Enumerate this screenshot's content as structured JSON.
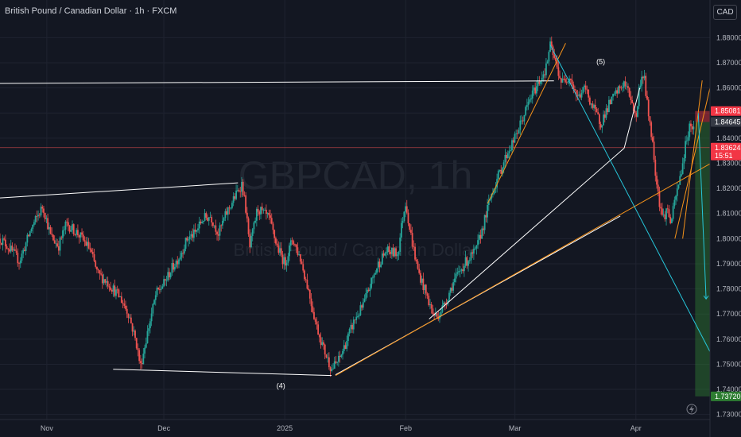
{
  "header": {
    "title": "British Pound / Canadian Dollar · 1h · FXCM",
    "currency": "CAD"
  },
  "watermark": {
    "symbol": "GBPCAD, 1h",
    "name": "British Pound / Canadian Dollar"
  },
  "colors": {
    "background": "#131722",
    "up": "#26a69a",
    "down": "#ef5350",
    "white_line": "#ffffff",
    "orange_line": "#f7931a",
    "teal_line": "#26c6da",
    "stop_zone": "#f23645",
    "target_zone": "#2e7d32"
  },
  "chart_data": {
    "type": "candlestick",
    "symbol": "GBPCAD",
    "interval": "1h",
    "source": "FXCM",
    "ylim": [
      1.728,
      1.895
    ],
    "y_ticks": [
      "1.88000",
      "1.87000",
      "1.86000",
      "1.85000",
      "1.84000",
      "1.83000",
      "1.82000",
      "1.81000",
      "1.80000",
      "1.79000",
      "1.78000",
      "1.77000",
      "1.76000",
      "1.75000",
      "1.74000",
      "1.73000"
    ],
    "x_ticks": [
      {
        "label": "Nov",
        "t": 10
      },
      {
        "label": "Dec",
        "t": 40
      },
      {
        "label": "2025",
        "t": 71
      },
      {
        "label": "Feb",
        "t": 102
      },
      {
        "label": "Mar",
        "t": 130
      },
      {
        "label": "Apr",
        "t": 161
      }
    ],
    "t_range": [
      -2,
      180
    ],
    "price_path": [
      [
        -2,
        1.8
      ],
      [
        0,
        1.797
      ],
      [
        3,
        1.791
      ],
      [
        6,
        1.804
      ],
      [
        9,
        1.813
      ],
      [
        11,
        1.801
      ],
      [
        13,
        1.797
      ],
      [
        15,
        1.806
      ],
      [
        18,
        1.802
      ],
      [
        21,
        1.796
      ],
      [
        23,
        1.786
      ],
      [
        26,
        1.782
      ],
      [
        29,
        1.776
      ],
      [
        31,
        1.77
      ],
      [
        33,
        1.758
      ],
      [
        34,
        1.749
      ],
      [
        36,
        1.764
      ],
      [
        38,
        1.778
      ],
      [
        40,
        1.782
      ],
      [
        42,
        1.788
      ],
      [
        44,
        1.793
      ],
      [
        46,
        1.8
      ],
      [
        48,
        1.802
      ],
      [
        50,
        1.808
      ],
      [
        52,
        1.809
      ],
      [
        54,
        1.802
      ],
      [
        56,
        1.81
      ],
      [
        58,
        1.816
      ],
      [
        60,
        1.822
      ],
      [
        61,
        1.812
      ],
      [
        62,
        1.796
      ],
      [
        64,
        1.812
      ],
      [
        67,
        1.808
      ],
      [
        69,
        1.797
      ],
      [
        71,
        1.79
      ],
      [
        73,
        1.8
      ],
      [
        75,
        1.792
      ],
      [
        77,
        1.78
      ],
      [
        79,
        1.766
      ],
      [
        81,
        1.756
      ],
      [
        83,
        1.748
      ],
      [
        85,
        1.752
      ],
      [
        87,
        1.76
      ],
      [
        89,
        1.768
      ],
      [
        91,
        1.773
      ],
      [
        93,
        1.782
      ],
      [
        95,
        1.79
      ],
      [
        97,
        1.795
      ],
      [
        100,
        1.794
      ],
      [
        101,
        1.806
      ],
      [
        102,
        1.815
      ],
      [
        103,
        1.804
      ],
      [
        105,
        1.788
      ],
      [
        107,
        1.779
      ],
      [
        109,
        1.77
      ],
      [
        110,
        1.769
      ],
      [
        112,
        1.774
      ],
      [
        114,
        1.782
      ],
      [
        117,
        1.79
      ],
      [
        120,
        1.795
      ],
      [
        122,
        1.806
      ],
      [
        124,
        1.818
      ],
      [
        126,
        1.826
      ],
      [
        128,
        1.834
      ],
      [
        130,
        1.84
      ],
      [
        132,
        1.848
      ],
      [
        134,
        1.856
      ],
      [
        136,
        1.862
      ],
      [
        138,
        1.868
      ],
      [
        139,
        1.877
      ],
      [
        140,
        1.872
      ],
      [
        142,
        1.862
      ],
      [
        144,
        1.865
      ],
      [
        146,
        1.856
      ],
      [
        148,
        1.86
      ],
      [
        150,
        1.852
      ],
      [
        152,
        1.846
      ],
      [
        154,
        1.853
      ],
      [
        156,
        1.858
      ],
      [
        158,
        1.862
      ],
      [
        160,
        1.855
      ],
      [
        161,
        1.847
      ],
      [
        162,
        1.862
      ],
      [
        163,
        1.866
      ],
      [
        164,
        1.852
      ],
      [
        165,
        1.842
      ],
      [
        166,
        1.827
      ],
      [
        167,
        1.815
      ],
      [
        168,
        1.808
      ],
      [
        169,
        1.812
      ],
      [
        170,
        1.806
      ],
      [
        171,
        1.815
      ],
      [
        172,
        1.822
      ],
      [
        173,
        1.83
      ],
      [
        174,
        1.84
      ],
      [
        175,
        1.846
      ],
      [
        176,
        1.843
      ]
    ],
    "levels": {
      "current": {
        "value": 1.83624,
        "label": "1.83624",
        "countdown": "15:51"
      },
      "stop": {
        "value": 1.85081,
        "label": "1.85081"
      },
      "entry": {
        "value": 1.84645,
        "label": "1.84645"
      },
      "target": {
        "value": 1.7372,
        "label": "1.73720"
      }
    },
    "position": {
      "t_start": 176.2,
      "t_end": 180,
      "entry": 1.84645,
      "stop": 1.85081,
      "target": 1.7372
    },
    "wave_labels": [
      {
        "text": "(4)",
        "t": 70,
        "y": 1.7405
      },
      {
        "text": "(5)",
        "t": 152,
        "y": 1.8695
      }
    ],
    "drawings": {
      "white": [
        [
          [
            -2,
            1.8618
          ],
          [
            140,
            1.8628
          ]
        ],
        [
          [
            -2,
            1.8162
          ],
          [
            59,
            1.8222
          ]
        ],
        [
          [
            27,
            1.748
          ],
          [
            83,
            1.7455
          ]
        ],
        [
          [
            108,
            1.768
          ],
          [
            158,
            1.836
          ]
        ],
        [
          [
            158,
            1.836
          ],
          [
            162,
            1.86
          ]
        ],
        [
          [
            84,
            1.7458
          ],
          [
            157,
            1.809
          ]
        ]
      ],
      "orange": [
        [
          [
            84,
            1.7455
          ],
          [
            180,
            1.8298
          ]
        ],
        [
          [
            123,
            1.814
          ],
          [
            143,
            1.8778
          ]
        ],
        [
          [
            171,
            1.8
          ],
          [
            180,
            1.86
          ]
        ],
        [
          [
            173,
            1.8
          ],
          [
            178,
            1.863
          ]
        ]
      ],
      "teal": [
        [
          [
            139,
            1.8772
          ],
          [
            180,
            1.755
          ]
        ],
        [
          [
            177,
            1.85
          ],
          [
            179,
            1.776
          ]
        ]
      ]
    }
  }
}
